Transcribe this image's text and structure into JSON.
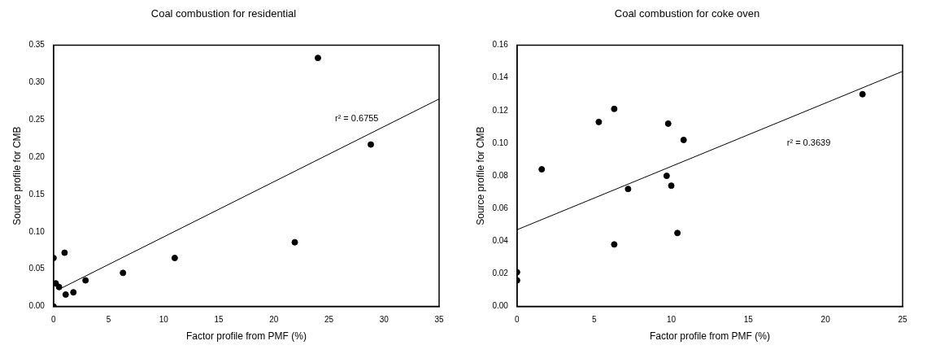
{
  "chart_data": [
    {
      "type": "scatter",
      "title": "Coal combustion for residential",
      "xlabel": "Factor profile from PMF (%)",
      "ylabel": "Source profile for CMB",
      "xlim": [
        0,
        35
      ],
      "ylim": [
        0,
        0.35
      ],
      "xticks": [
        0,
        5,
        10,
        15,
        20,
        25,
        30,
        35
      ],
      "yticks": [
        {
          "value": 0,
          "label": "0.00"
        },
        {
          "value": 0.05,
          "label": "0.05"
        },
        {
          "value": 0.1,
          "label": "0.10"
        },
        {
          "value": 0.15,
          "label": "0.15"
        },
        {
          "value": 0.2,
          "label": "0.20"
        },
        {
          "value": 0.25,
          "label": "0.25"
        },
        {
          "value": 0.3,
          "label": "0.30"
        },
        {
          "value": 0.35,
          "label": "0.35"
        }
      ],
      "grid": false,
      "legend": false,
      "marker": "circle",
      "annotations": [
        "r² = 0.6755"
      ],
      "series": [
        {
          "color": "#000000",
          "x": [
            0,
            0,
            0.2,
            0.5,
            1,
            1.1,
            1.8,
            2.9,
            6.3,
            11,
            21.9,
            24,
            28.8
          ],
          "values": [
            0.065,
            0,
            0.031,
            0.026,
            0.072,
            0.016,
            0.019,
            0.035,
            0.045,
            0.065,
            0.086,
            0.333,
            0.217
          ]
        },
        {
          "type": "line",
          "color": "#000000",
          "marker": "none",
          "x": [
            0.5,
            35
          ],
          "values": [
            0.023,
            0.278
          ]
        }
      ]
    },
    {
      "type": "scatter",
      "title": "Coal combustion for coke oven",
      "xlabel": "Factor profile from PMF (%)",
      "ylabel": "Source profile for CMB",
      "xlim": [
        0,
        25
      ],
      "ylim": [
        0,
        0.16
      ],
      "xticks": [
        0,
        5,
        10,
        15,
        20,
        25
      ],
      "yticks": [
        {
          "value": 0,
          "label": "0.00"
        },
        {
          "value": 0.02,
          "label": "0.02"
        },
        {
          "value": 0.04,
          "label": "0.04"
        },
        {
          "value": 0.06,
          "label": "0.06"
        },
        {
          "value": 0.08,
          "label": "0.08"
        },
        {
          "value": 0.1,
          "label": "0.10"
        },
        {
          "value": 0.12,
          "label": "0.12"
        },
        {
          "value": 0.14,
          "label": "0.14"
        },
        {
          "value": 0.16,
          "label": "0.16"
        }
      ],
      "grid": false,
      "legend": false,
      "marker": "circle",
      "annotations": [
        "r² = 0.3639"
      ],
      "series": [
        {
          "color": "#000000",
          "x": [
            0,
            0,
            1.6,
            5.3,
            6.3,
            6.3,
            7.2,
            9.7,
            9.8,
            10,
            10.4,
            10.8,
            22.4
          ],
          "values": [
            0.021,
            0.016,
            0.084,
            0.113,
            0.121,
            0.038,
            0.072,
            0.08,
            0.112,
            0.074,
            0.045,
            0.102,
            0.13
          ]
        },
        {
          "type": "line",
          "color": "#000000",
          "marker": "none",
          "x": [
            0,
            25
          ],
          "values": [
            0.047,
            0.144
          ]
        }
      ]
    }
  ]
}
